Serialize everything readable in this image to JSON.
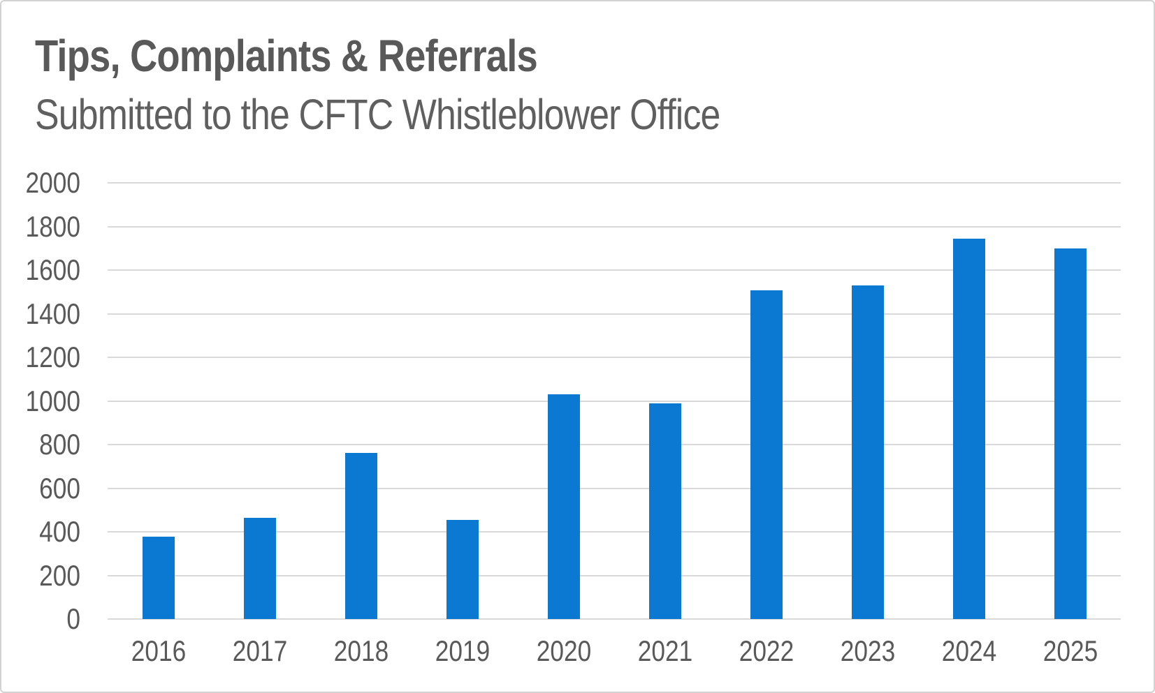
{
  "header": {
    "title": "Tips, Complaints & Referrals",
    "subtitle": "Submitted to the CFTC Whistleblower Office"
  },
  "chart_data": {
    "type": "bar",
    "title": "Tips, Complaints & Referrals",
    "subtitle": "Submitted to the CFTC Whistleblower Office",
    "categories": [
      "2016",
      "2017",
      "2018",
      "2019",
      "2020",
      "2021",
      "2022",
      "2023",
      "2024",
      "2025"
    ],
    "values": [
      376,
      465,
      760,
      455,
      1030,
      990,
      1506,
      1530,
      1744,
      1700
    ],
    "xlabel": "",
    "ylabel": "",
    "ylim": [
      0,
      2000
    ],
    "ytick_step": 200,
    "ytick_labels": [
      "0",
      "200",
      "400",
      "600",
      "800",
      "1000",
      "1200",
      "1400",
      "1600",
      "1800",
      "2000"
    ],
    "grid": true,
    "legend": false,
    "colors": {
      "bar": "#0b79d2",
      "title_text": "#595959",
      "subtitle_text": "#5f5f5f",
      "tick_text": "#595959",
      "gridline": "#d9d9d9",
      "card_border": "#d2d2d2",
      "background": "#ffffff"
    }
  }
}
